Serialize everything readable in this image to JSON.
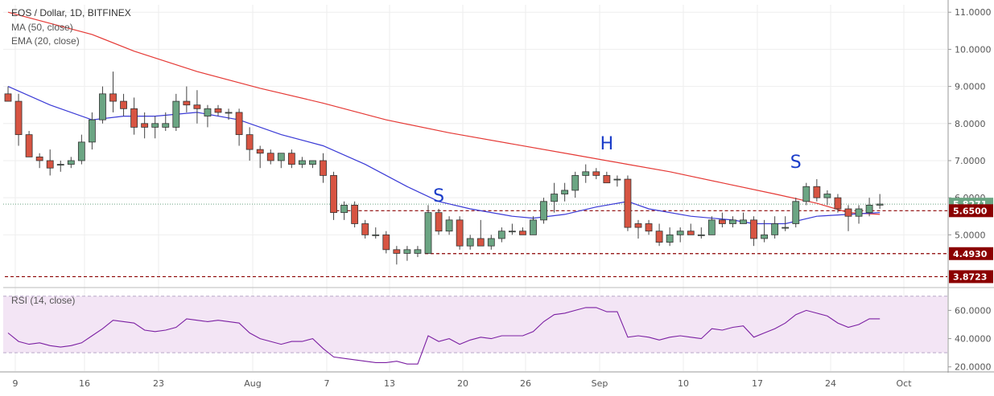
{
  "chart_data": [
    {
      "type": "candlestick",
      "title": "EOS / Dollar, 1D, BITFINEX",
      "indicators": [
        "MA (50, close)",
        "EMA (20, close)"
      ],
      "colors": {
        "up": "#6ba583",
        "down": "#d75442",
        "ma50": "#e53935",
        "ema20": "#3a3ad6",
        "grid": "#eeeeee"
      },
      "x_ticks": [
        "9",
        "16",
        "23",
        "Aug",
        "7",
        "13",
        "20",
        "26",
        "Sep",
        "10",
        "17",
        "24",
        "Oct"
      ],
      "y_ticks": [
        "11.0000",
        "10.0000",
        "9.0000",
        "8.0000",
        "7.0000",
        "6.0000",
        "5.0000"
      ],
      "ylim": [
        3.6,
        11.2
      ],
      "price_labels": [
        {
          "text": "5.8271",
          "value": 5.8271,
          "color": "#6ba583"
        },
        {
          "text": "5.6500",
          "value": 5.65,
          "color": "#8b0000"
        },
        {
          "text": "4.4930",
          "value": 4.493,
          "color": "#8b0000"
        },
        {
          "text": "3.8723",
          "value": 3.8723,
          "color": "#8b0000"
        }
      ],
      "pattern_labels": [
        "S",
        "H",
        "S"
      ],
      "candles": [
        [
          8.8,
          9.0,
          8.6,
          8.6
        ],
        [
          8.6,
          8.8,
          7.4,
          7.7
        ],
        [
          7.7,
          7.8,
          7.1,
          7.1
        ],
        [
          7.1,
          7.2,
          6.8,
          7.0
        ],
        [
          7.0,
          7.3,
          6.6,
          6.8
        ],
        [
          6.9,
          7.0,
          6.7,
          6.9
        ],
        [
          6.9,
          7.1,
          6.8,
          7.0
        ],
        [
          7.0,
          7.7,
          6.9,
          7.5
        ],
        [
          7.5,
          8.3,
          7.3,
          8.1
        ],
        [
          8.1,
          9.0,
          8.0,
          8.8
        ],
        [
          8.8,
          9.4,
          8.3,
          8.6
        ],
        [
          8.6,
          8.8,
          8.2,
          8.4
        ],
        [
          8.4,
          8.7,
          7.7,
          7.9
        ],
        [
          8.0,
          8.3,
          7.6,
          7.9
        ],
        [
          7.9,
          8.2,
          7.6,
          8.0
        ],
        [
          7.9,
          8.3,
          7.8,
          8.0
        ],
        [
          7.9,
          8.8,
          7.8,
          8.6
        ],
        [
          8.6,
          9.0,
          8.3,
          8.5
        ],
        [
          8.5,
          8.9,
          8.0,
          8.4
        ],
        [
          8.2,
          8.5,
          7.9,
          8.4
        ],
        [
          8.4,
          8.5,
          8.2,
          8.3
        ],
        [
          8.3,
          8.4,
          8.1,
          8.3
        ],
        [
          8.3,
          8.4,
          7.4,
          7.7
        ],
        [
          7.7,
          7.9,
          7.0,
          7.3
        ],
        [
          7.3,
          7.4,
          6.8,
          7.2
        ],
        [
          7.2,
          7.3,
          6.9,
          7.0
        ],
        [
          7.0,
          7.2,
          6.8,
          7.2
        ],
        [
          7.2,
          7.3,
          6.8,
          6.9
        ],
        [
          6.9,
          7.1,
          6.8,
          7.0
        ],
        [
          6.9,
          7.0,
          6.8,
          7.0
        ],
        [
          7.0,
          7.2,
          6.4,
          6.6
        ],
        [
          6.6,
          6.7,
          5.4,
          5.6
        ],
        [
          5.6,
          5.9,
          5.4,
          5.8
        ],
        [
          5.8,
          5.9,
          5.2,
          5.3
        ],
        [
          5.3,
          5.4,
          4.9,
          5.0
        ],
        [
          5.0,
          5.2,
          4.9,
          5.0
        ],
        [
          5.0,
          5.1,
          4.5,
          4.6
        ],
        [
          4.6,
          4.7,
          4.2,
          4.5
        ],
        [
          4.5,
          4.7,
          4.3,
          4.6
        ],
        [
          4.5,
          4.7,
          4.4,
          4.6
        ],
        [
          4.5,
          5.8,
          4.5,
          5.6
        ],
        [
          5.6,
          5.7,
          5.0,
          5.1
        ],
        [
          5.1,
          5.5,
          5.0,
          5.4
        ],
        [
          5.4,
          5.5,
          4.6,
          4.7
        ],
        [
          4.7,
          5.0,
          4.6,
          4.9
        ],
        [
          4.9,
          5.4,
          4.7,
          4.7
        ],
        [
          4.7,
          5.0,
          4.6,
          4.9
        ],
        [
          4.9,
          5.2,
          4.8,
          5.1
        ],
        [
          5.1,
          5.3,
          5.0,
          5.1
        ],
        [
          5.1,
          5.2,
          5.0,
          5.0
        ],
        [
          5.0,
          5.5,
          5.0,
          5.4
        ],
        [
          5.4,
          6.0,
          5.3,
          5.9
        ],
        [
          5.9,
          6.4,
          5.6,
          6.1
        ],
        [
          6.1,
          6.4,
          5.9,
          6.2
        ],
        [
          6.2,
          6.7,
          6.0,
          6.6
        ],
        [
          6.6,
          6.9,
          6.4,
          6.7
        ],
        [
          6.7,
          6.8,
          6.5,
          6.6
        ],
        [
          6.6,
          6.7,
          6.4,
          6.4
        ],
        [
          6.5,
          6.6,
          6.3,
          6.5
        ],
        [
          6.5,
          6.6,
          5.1,
          5.2
        ],
        [
          5.3,
          5.4,
          4.9,
          5.2
        ],
        [
          5.3,
          5.4,
          5.0,
          5.1
        ],
        [
          5.1,
          5.3,
          4.7,
          4.8
        ],
        [
          4.8,
          5.2,
          4.7,
          5.0
        ],
        [
          5.0,
          5.2,
          4.8,
          5.1
        ],
        [
          5.1,
          5.3,
          5.0,
          5.0
        ],
        [
          5.0,
          5.2,
          4.9,
          5.0
        ],
        [
          5.0,
          5.5,
          5.0,
          5.4
        ],
        [
          5.4,
          5.6,
          5.2,
          5.3
        ],
        [
          5.3,
          5.5,
          5.2,
          5.4
        ],
        [
          5.3,
          5.6,
          5.3,
          5.4
        ],
        [
          5.4,
          5.5,
          4.7,
          4.9
        ],
        [
          4.9,
          5.4,
          4.8,
          5.0
        ],
        [
          5.0,
          5.5,
          4.9,
          5.3
        ],
        [
          5.2,
          5.5,
          5.1,
          5.2
        ],
        [
          5.3,
          6.0,
          5.2,
          5.9
        ],
        [
          5.9,
          6.4,
          5.8,
          6.3
        ],
        [
          6.3,
          6.5,
          5.9,
          6.0
        ],
        [
          6.0,
          6.2,
          5.8,
          6.1
        ],
        [
          6.0,
          6.1,
          5.6,
          5.7
        ],
        [
          5.7,
          5.8,
          5.1,
          5.5
        ],
        [
          5.5,
          5.8,
          5.3,
          5.7
        ],
        [
          5.6,
          6.0,
          5.5,
          5.8
        ],
        [
          5.8,
          6.1,
          5.7,
          5.83
        ]
      ],
      "ma50": [
        [
          0,
          11.0
        ],
        [
          8,
          10.4
        ],
        [
          12,
          9.95
        ],
        [
          18,
          9.4
        ],
        [
          24,
          8.95
        ],
        [
          30,
          8.55
        ],
        [
          36,
          8.1
        ],
        [
          42,
          7.75
        ],
        [
          48,
          7.45
        ],
        [
          54,
          7.15
        ],
        [
          59,
          6.9
        ],
        [
          63,
          6.7
        ],
        [
          68,
          6.4
        ],
        [
          73,
          6.1
        ],
        [
          77,
          5.85
        ],
        [
          80,
          5.6
        ],
        [
          83,
          5.55
        ]
      ],
      "ema20": [
        [
          0,
          9.0
        ],
        [
          4,
          8.5
        ],
        [
          8,
          8.1
        ],
        [
          11,
          8.2
        ],
        [
          14,
          8.2
        ],
        [
          18,
          8.3
        ],
        [
          22,
          8.1
        ],
        [
          26,
          7.7
        ],
        [
          30,
          7.4
        ],
        [
          34,
          6.9
        ],
        [
          38,
          6.3
        ],
        [
          41,
          5.9
        ],
        [
          44,
          5.7
        ],
        [
          48,
          5.5
        ],
        [
          50,
          5.45
        ],
        [
          53,
          5.55
        ],
        [
          56,
          5.75
        ],
        [
          59,
          5.9
        ],
        [
          61,
          5.7
        ],
        [
          65,
          5.5
        ],
        [
          69,
          5.4
        ],
        [
          71,
          5.3
        ],
        [
          74,
          5.3
        ],
        [
          77,
          5.5
        ],
        [
          80,
          5.55
        ],
        [
          83,
          5.6
        ]
      ],
      "levels": [
        {
          "value": 5.65,
          "from": 31,
          "to": 83
        },
        {
          "value": 4.493,
          "from": 40,
          "to": 89
        },
        {
          "value": 3.8723,
          "from": 0,
          "to": 89
        }
      ]
    },
    {
      "type": "line",
      "title": "RSI (14, close)",
      "y_ticks": [
        "60.0000",
        "40.0000",
        "20.0000"
      ],
      "ylim": [
        17,
        75
      ],
      "bands": [
        30,
        70
      ],
      "colors": {
        "line": "#7b1fa2",
        "band": "#f3e5f5"
      },
      "values": [
        44,
        38,
        36,
        37,
        35,
        34,
        35,
        37,
        42,
        47,
        53,
        52,
        51,
        46,
        45,
        46,
        48,
        54,
        53,
        52,
        53,
        52,
        51,
        44,
        40,
        38,
        36,
        38,
        38,
        40,
        33,
        27,
        26,
        25,
        24,
        23,
        23,
        24,
        22,
        22,
        42,
        38,
        40,
        36,
        39,
        41,
        40,
        42,
        42,
        42,
        45,
        52,
        57,
        58,
        60,
        62,
        62,
        59,
        59,
        41,
        42,
        41,
        39,
        41,
        42,
        41,
        40,
        47,
        46,
        48,
        49,
        41,
        44,
        47,
        51,
        57,
        60,
        58,
        56,
        51,
        48,
        50,
        54,
        54
      ]
    }
  ]
}
